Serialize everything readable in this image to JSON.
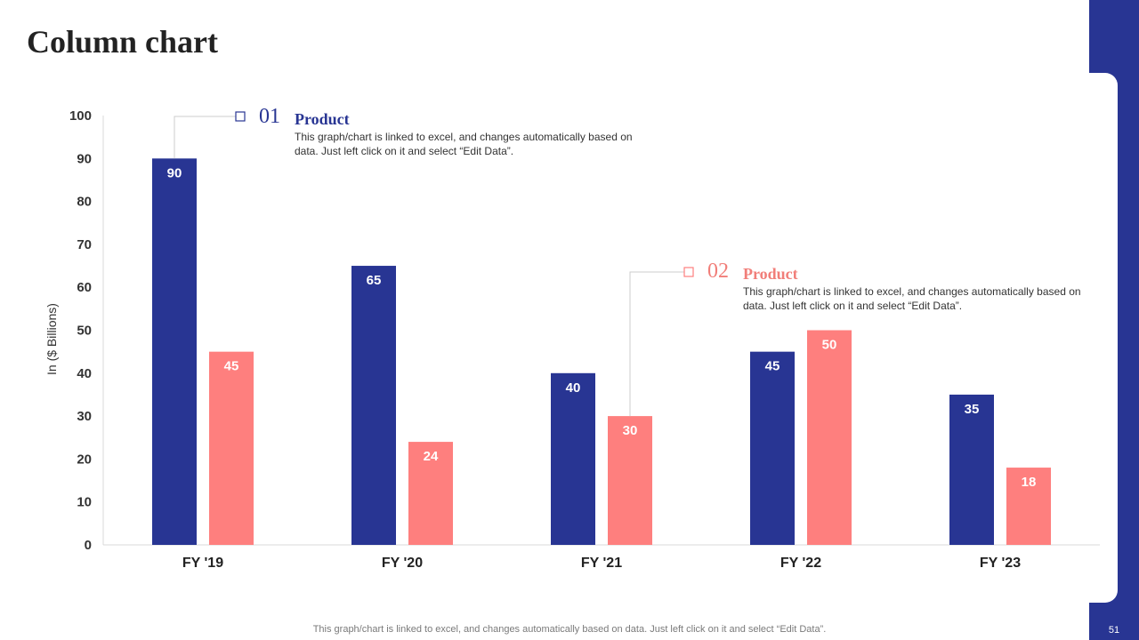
{
  "slide": {
    "title": "Column chart",
    "footer": "This graph/chart is linked to excel,  and changes automatically based on data. Just left click on it and select “Edit Data”.",
    "page_number": "51"
  },
  "colors": {
    "series1": "#283593",
    "series2": "#fe7f7e",
    "accent_bar": "#283593"
  },
  "callouts": [
    {
      "number": "01",
      "title": "Product",
      "text": "This graph/chart is linked to excel, and changes automatically based on data. Just left click on it and select “Edit Data”."
    },
    {
      "number": "02",
      "title": "Product",
      "text": "This graph/chart is linked to excel, and changes automatically based on data. Just left click on it and select “Edit Data”."
    }
  ],
  "chart_data": {
    "type": "bar",
    "title": "",
    "xlabel": "",
    "ylabel": "In ($ Billions)",
    "ylim": [
      0,
      100
    ],
    "yticks": [
      0,
      10,
      20,
      30,
      40,
      50,
      60,
      70,
      80,
      90,
      100
    ],
    "categories": [
      "FY '19",
      "FY '20",
      "FY '21",
      "FY '22",
      "FY '23"
    ],
    "series": [
      {
        "name": "Product 01",
        "values": [
          90,
          65,
          40,
          45,
          35
        ]
      },
      {
        "name": "Product 02",
        "values": [
          45,
          24,
          30,
          50,
          18
        ]
      }
    ],
    "grid": false,
    "legend": "none"
  }
}
